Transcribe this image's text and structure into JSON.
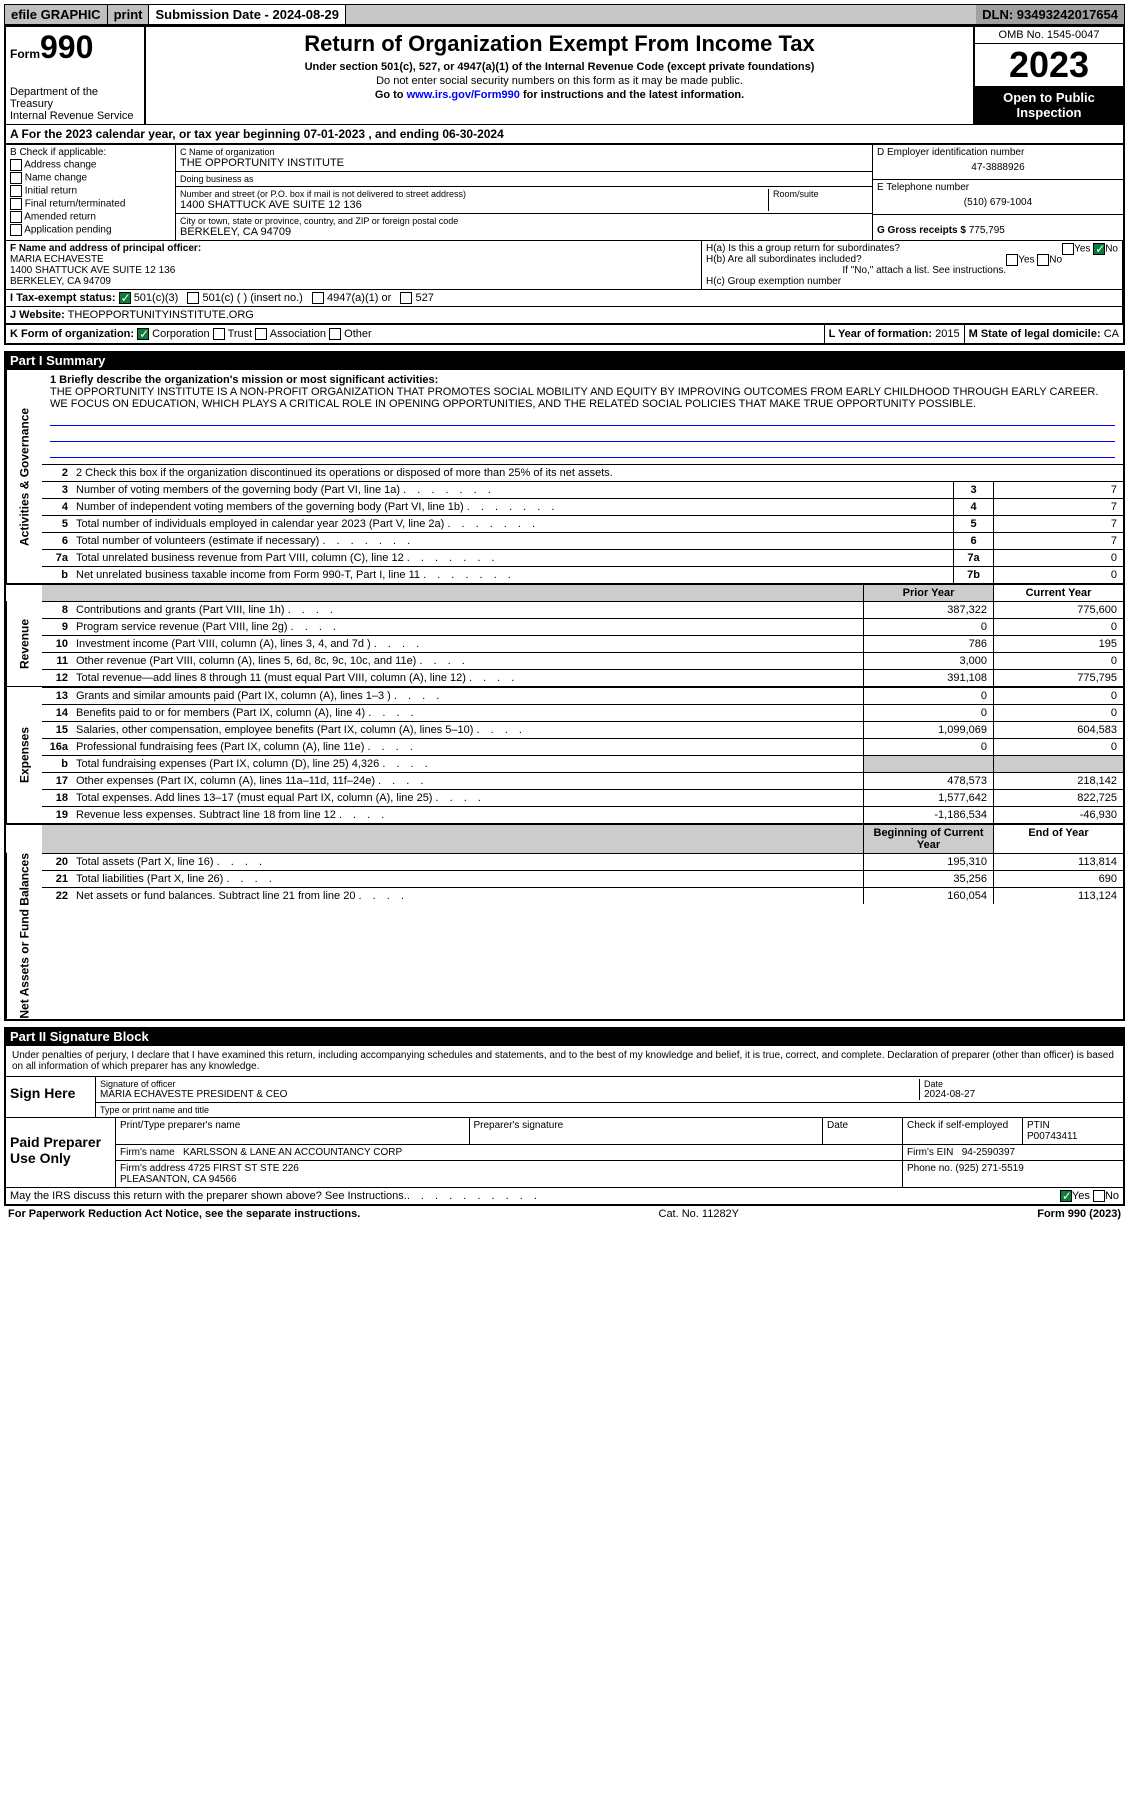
{
  "topbar": {
    "efile": "efile GRAPHIC",
    "print": "print",
    "sub_label": "Submission Date - 2024-08-29",
    "dln": "DLN: 93493242017654"
  },
  "header": {
    "form_prefix": "Form",
    "form_no": "990",
    "title": "Return of Organization Exempt From Income Tax",
    "subtitle": "Under section 501(c), 527, or 4947(a)(1) of the Internal Revenue Code (except private foundations)",
    "ssn_warn": "Do not enter social security numbers on this form as it may be made public.",
    "goto": "Go to ",
    "goto_url": "www.irs.gov/Form990",
    "goto_tail": " for instructions and the latest information.",
    "dept": "Department of the Treasury\nInternal Revenue Service",
    "omb": "OMB No. 1545-0047",
    "year": "2023",
    "inspect": "Open to Public Inspection"
  },
  "section_a": "A For the 2023 calendar year, or tax year beginning 07-01-2023   , and ending 06-30-2024",
  "box_b": {
    "title": "B Check if applicable:",
    "opts": [
      "Address change",
      "Name change",
      "Initial return",
      "Final return/terminated",
      "Amended return",
      "Application pending"
    ]
  },
  "box_c": {
    "name_lbl": "C Name of organization",
    "name": "THE OPPORTUNITY INSTITUTE",
    "dba_lbl": "Doing business as",
    "dba": "",
    "addr_lbl": "Number and street (or P.O. box if mail is not delivered to street address)",
    "room_lbl": "Room/suite",
    "addr": "1400 SHATTUCK AVE SUITE 12 136",
    "city_lbl": "City or town, state or province, country, and ZIP or foreign postal code",
    "city": "BERKELEY, CA  94709"
  },
  "box_d": {
    "ein_lbl": "D Employer identification number",
    "ein": "47-3888926",
    "tel_lbl": "E Telephone number",
    "tel": "(510) 679-1004",
    "gross_lbl": "G Gross receipts $",
    "gross": "775,795"
  },
  "box_f": {
    "lbl": "F Name and address of principal officer:",
    "name": "MARIA ECHAVESTE",
    "addr": "1400 SHATTUCK AVE SUITE 12 136\nBERKELEY, CA  94709"
  },
  "box_h": {
    "ha": "H(a)  Is this a group return for subordinates?",
    "hb": "H(b)  Are all subordinates included?",
    "hb_note": "If \"No,\" attach a list. See instructions.",
    "hc": "H(c)  Group exemption number ",
    "yes": "Yes",
    "no": "No"
  },
  "row_i": {
    "lbl": "I   Tax-exempt status:",
    "o1": "501(c)(3)",
    "o2": "501(c) (  ) (insert no.)",
    "o3": "4947(a)(1) or",
    "o4": "527"
  },
  "row_j": {
    "lbl": "J   Website:",
    "val": "THEOPPORTUNITYINSTITUTE.ORG"
  },
  "row_k": {
    "lbl": "K Form of organization:",
    "o1": "Corporation",
    "o2": "Trust",
    "o3": "Association",
    "o4": "Other"
  },
  "row_l": {
    "lbl": "L Year of formation:",
    "val": "2015"
  },
  "row_m": {
    "lbl": "M State of legal domicile:",
    "val": "CA"
  },
  "part1": {
    "hdr": "Part I    Summary",
    "brief_lbl": "1  Briefly describe the organization's mission or most significant activities:",
    "brief": "THE OPPORTUNITY INSTITUTE IS A NON-PROFIT ORGANIZATION THAT PROMOTES SOCIAL MOBILITY AND EQUITY BY IMPROVING OUTCOMES FROM EARLY CHILDHOOD THROUGH EARLY CAREER. WE FOCUS ON EDUCATION, WHICH PLAYS A CRITICAL ROLE IN OPENING OPPORTUNITIES, AND THE RELATED SOCIAL POLICIES THAT MAKE TRUE OPPORTUNITY POSSIBLE.",
    "line2": "2   Check this box       if the organization discontinued its operations or disposed of more than 25% of its net assets.",
    "sides": {
      "gov": "Activities & Governance",
      "rev": "Revenue",
      "exp": "Expenses",
      "net": "Net Assets or Fund Balances"
    },
    "col_py": "Prior Year",
    "col_cy": "Current Year",
    "col_boy": "Beginning of Current Year",
    "col_eoy": "End of Year",
    "rows_gov": [
      {
        "n": "3",
        "desc": "Number of voting members of the governing body (Part VI, line 1a)",
        "box": "3",
        "v": "7"
      },
      {
        "n": "4",
        "desc": "Number of independent voting members of the governing body (Part VI, line 1b)",
        "box": "4",
        "v": "7"
      },
      {
        "n": "5",
        "desc": "Total number of individuals employed in calendar year 2023 (Part V, line 2a)",
        "box": "5",
        "v": "7"
      },
      {
        "n": "6",
        "desc": "Total number of volunteers (estimate if necessary)",
        "box": "6",
        "v": "7"
      },
      {
        "n": "7a",
        "desc": "Total unrelated business revenue from Part VIII, column (C), line 12",
        "box": "7a",
        "v": "0"
      },
      {
        "n": "b",
        "desc": "Net unrelated business taxable income from Form 990-T, Part I, line 11",
        "box": "7b",
        "v": "0"
      }
    ],
    "rows_rev": [
      {
        "n": "8",
        "desc": "Contributions and grants (Part VIII, line 1h)",
        "py": "387,322",
        "cy": "775,600"
      },
      {
        "n": "9",
        "desc": "Program service revenue (Part VIII, line 2g)",
        "py": "0",
        "cy": "0"
      },
      {
        "n": "10",
        "desc": "Investment income (Part VIII, column (A), lines 3, 4, and 7d )",
        "py": "786",
        "cy": "195"
      },
      {
        "n": "11",
        "desc": "Other revenue (Part VIII, column (A), lines 5, 6d, 8c, 9c, 10c, and 11e)",
        "py": "3,000",
        "cy": "0"
      },
      {
        "n": "12",
        "desc": "Total revenue—add lines 8 through 11 (must equal Part VIII, column (A), line 12)",
        "py": "391,108",
        "cy": "775,795"
      }
    ],
    "rows_exp": [
      {
        "n": "13",
        "desc": "Grants and similar amounts paid (Part IX, column (A), lines 1–3 )",
        "py": "0",
        "cy": "0"
      },
      {
        "n": "14",
        "desc": "Benefits paid to or for members (Part IX, column (A), line 4)",
        "py": "0",
        "cy": "0"
      },
      {
        "n": "15",
        "desc": "Salaries, other compensation, employee benefits (Part IX, column (A), lines 5–10)",
        "py": "1,099,069",
        "cy": "604,583"
      },
      {
        "n": "16a",
        "desc": "Professional fundraising fees (Part IX, column (A), line 11e)",
        "py": "0",
        "cy": "0"
      },
      {
        "n": "b",
        "desc": "Total fundraising expenses (Part IX, column (D), line 25) 4,326",
        "py": "",
        "cy": ""
      },
      {
        "n": "17",
        "desc": "Other expenses (Part IX, column (A), lines 11a–11d, 11f–24e)",
        "py": "478,573",
        "cy": "218,142"
      },
      {
        "n": "18",
        "desc": "Total expenses. Add lines 13–17 (must equal Part IX, column (A), line 25)",
        "py": "1,577,642",
        "cy": "822,725"
      },
      {
        "n": "19",
        "desc": "Revenue less expenses. Subtract line 18 from line 12",
        "py": "-1,186,534",
        "cy": "-46,930"
      }
    ],
    "rows_net": [
      {
        "n": "20",
        "desc": "Total assets (Part X, line 16)",
        "py": "195,310",
        "cy": "113,814"
      },
      {
        "n": "21",
        "desc": "Total liabilities (Part X, line 26)",
        "py": "35,256",
        "cy": "690"
      },
      {
        "n": "22",
        "desc": "Net assets or fund balances. Subtract line 21 from line 20",
        "py": "160,054",
        "cy": "113,124"
      }
    ]
  },
  "part2": {
    "hdr": "Part II    Signature Block",
    "perjury": "Under penalties of perjury, I declare that I have examined this return, including accompanying schedules and statements, and to the best of my knowledge and belief, it is true, correct, and complete. Declaration of preparer (other than officer) is based on all information of which preparer has any knowledge.",
    "sign_here": "Sign Here",
    "sig_officer_lbl": "Signature of officer",
    "sig_officer": "MARIA ECHAVESTE PRESIDENT & CEO",
    "sig_type_lbl": "Type or print name and title",
    "date_lbl": "Date",
    "date": "2024-08-27",
    "paid_prep": "Paid Preparer Use Only",
    "prep_name_lbl": "Print/Type preparer's name",
    "prep_sig_lbl": "Preparer's signature",
    "prep_date_lbl": "Date",
    "prep_self_lbl": "Check        if self-employed",
    "ptin_lbl": "PTIN",
    "ptin": "P00743411",
    "firm_name_lbl": "Firm's name",
    "firm_name": "KARLSSON & LANE AN ACCOUNTANCY CORP",
    "firm_ein_lbl": "Firm's EIN",
    "firm_ein": "94-2590397",
    "firm_addr_lbl": "Firm's address",
    "firm_addr": "4725 FIRST ST STE 226\nPLEASANTON, CA  94566",
    "firm_phone_lbl": "Phone no.",
    "firm_phone": "(925) 271-5519",
    "discuss": "May the IRS discuss this return with the preparer shown above? See Instructions."
  },
  "footer": {
    "pra": "For Paperwork Reduction Act Notice, see the separate instructions.",
    "cat": "Cat. No. 11282Y",
    "form": "Form 990 (2023)"
  }
}
